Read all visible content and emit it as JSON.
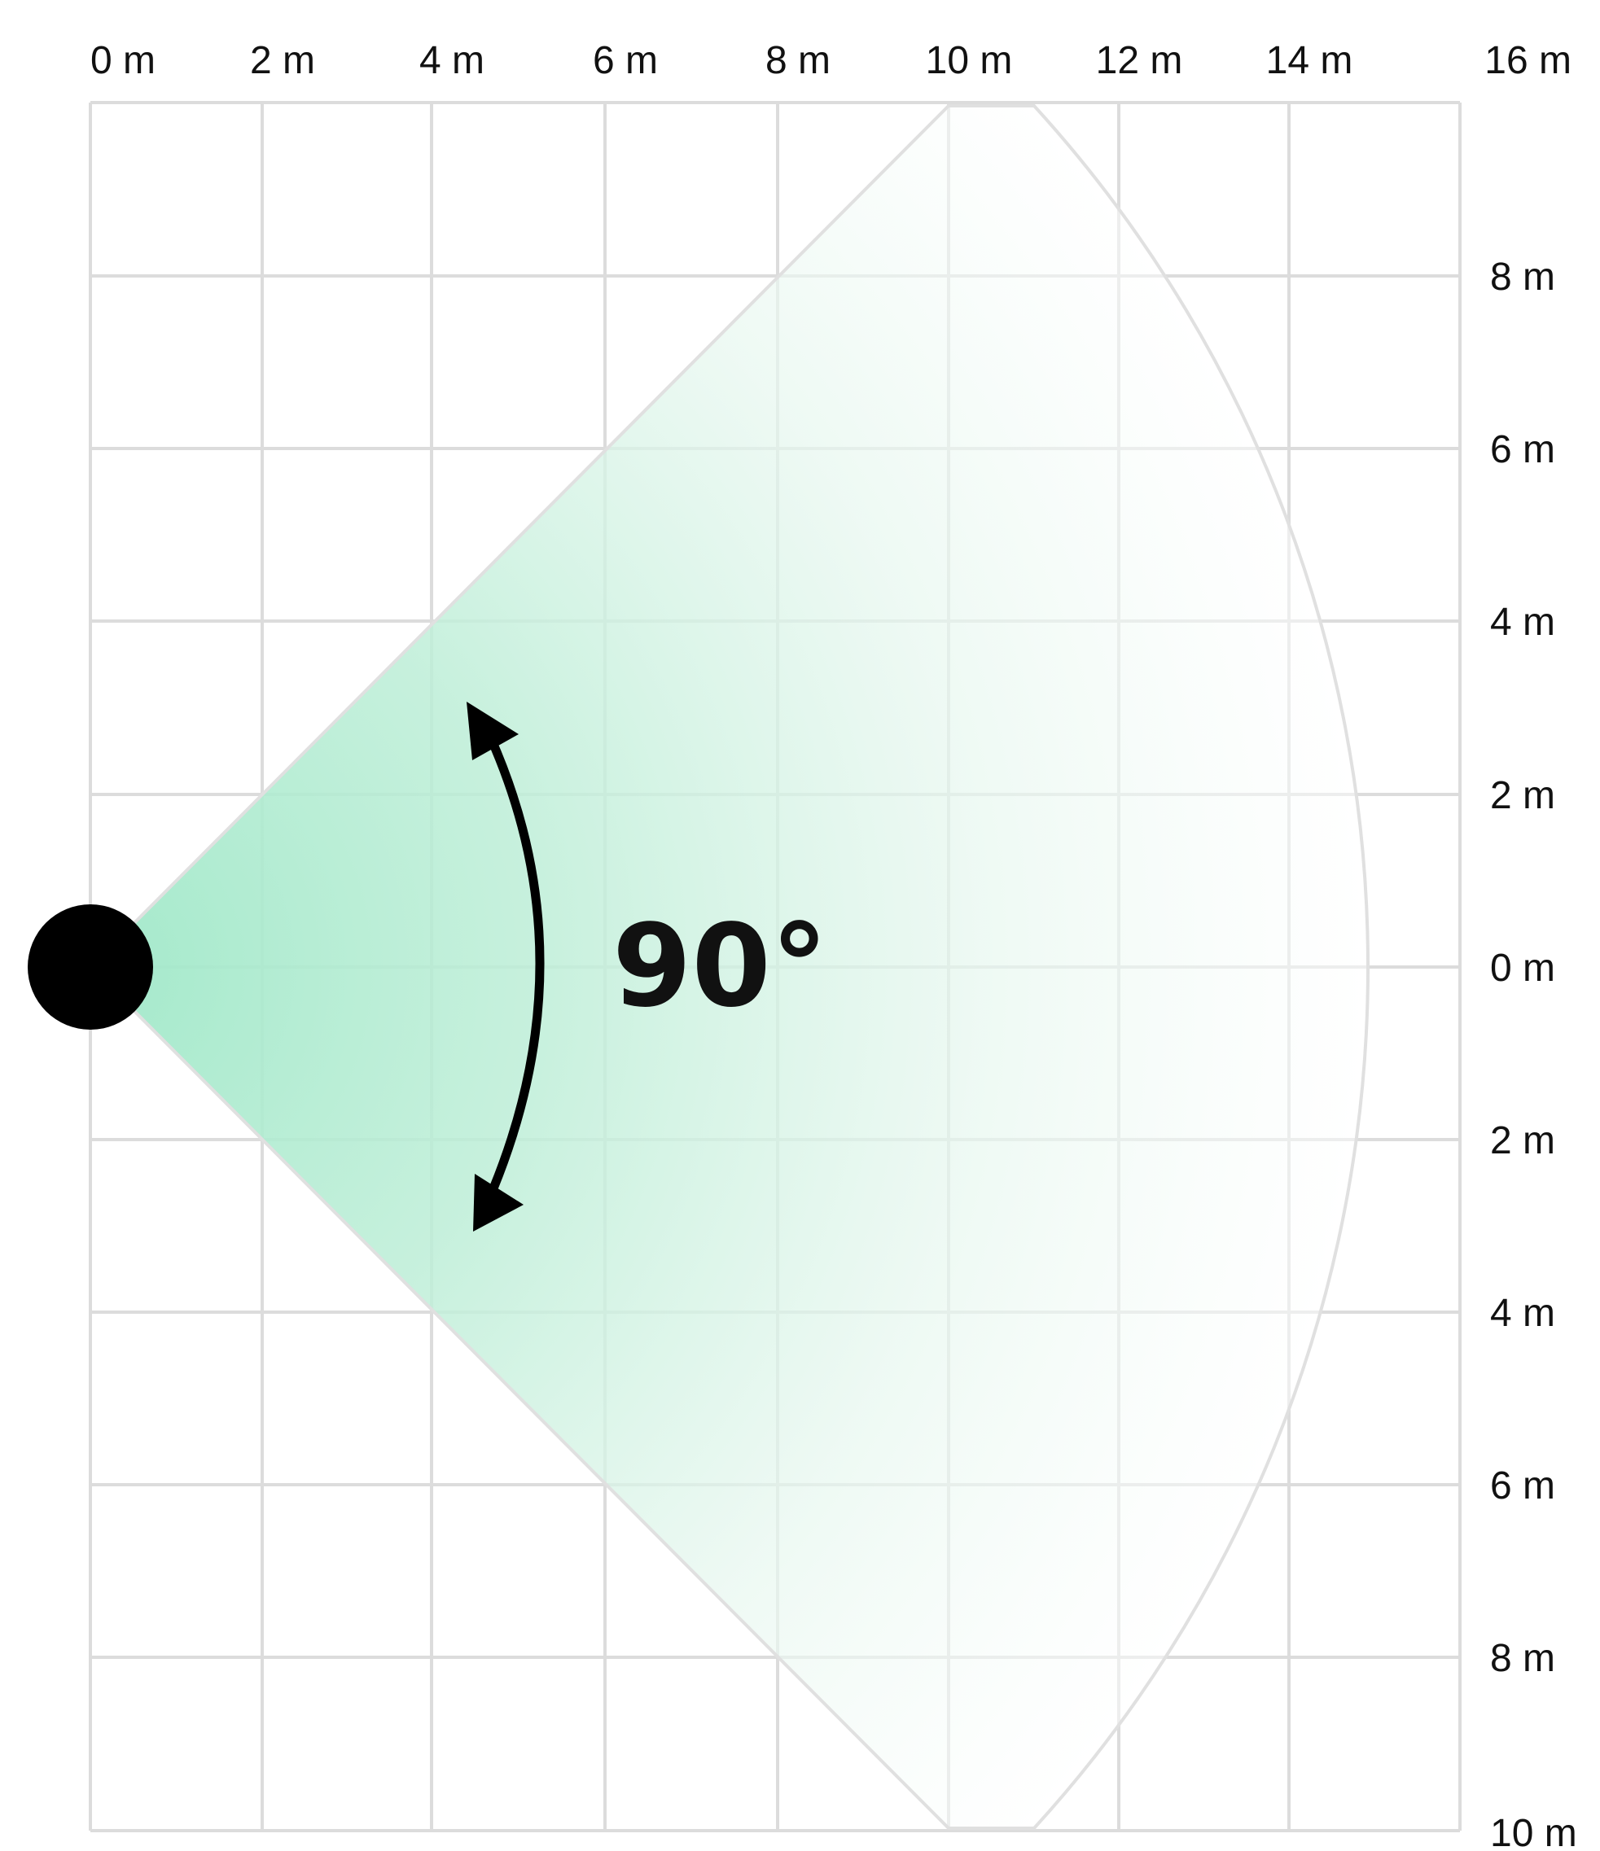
{
  "x_ticks": [
    "0 m",
    "2 m",
    "4 m",
    "6 m",
    "8 m",
    "10 m",
    "12 m",
    "14 m",
    "16 m"
  ],
  "y_ticks": [
    "8 m",
    "6 m",
    "4 m",
    "2 m",
    "0 m",
    "2 m",
    "4 m",
    "6 m",
    "8 m",
    "10 m"
  ],
  "angle_label": "90°",
  "colors": {
    "grid": "#dcdcdc",
    "beam": "#9fe8c8",
    "sensor": "#000000",
    "text": "#111111"
  }
}
